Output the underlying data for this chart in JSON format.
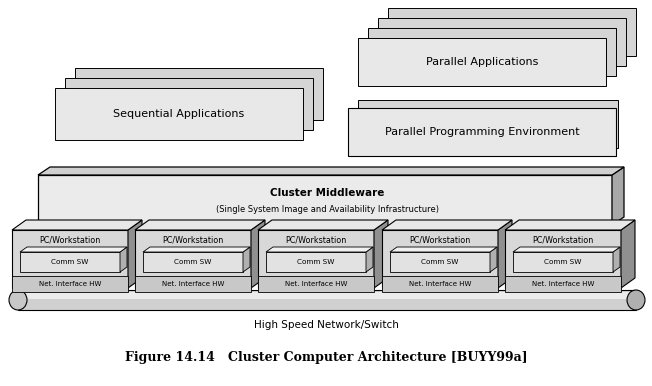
{
  "fig_width": 6.52,
  "fig_height": 3.86,
  "dpi": 100,
  "bg_color": "#ffffff",
  "caption": "Figure 14.14   Cluster Computer Architecture [BUYY99a]",
  "caption_fontsize": 9.0,
  "middleware_text1": "Cluster Middleware",
  "middleware_text2": "(Single System Image and Availability Infrastructure)",
  "seq_app_text": "Sequential Applications",
  "par_app_text": "Parallel Applications",
  "par_prog_text": "Parallel Programming Environment",
  "network_text": "High Speed Network/Switch",
  "node_labels": [
    "PC/Workstation",
    "PC/Workstation",
    "PC/Workstation",
    "PC/Workstation",
    "PC/Workstation"
  ],
  "comm_label": "Comm SW",
  "net_hw_label": "Net. Interface HW"
}
